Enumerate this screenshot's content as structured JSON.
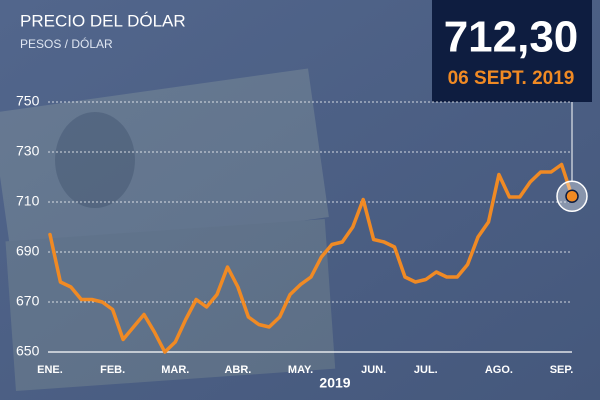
{
  "chart_data": {
    "type": "line",
    "title": "PRECIO DEL DÓLAR",
    "subtitle": "PESOS / DÓLAR",
    "x_label": "2019",
    "callout": {
      "value_label": "712,30",
      "date": "06 SEPT. 2019"
    },
    "categories": [
      "ENE.",
      null,
      null,
      null,
      null,
      null,
      "FEB.",
      null,
      null,
      null,
      null,
      null,
      "MAR.",
      null,
      null,
      null,
      null,
      null,
      "ABR.",
      null,
      null,
      null,
      null,
      null,
      "MAY.",
      null,
      null,
      null,
      null,
      null,
      null,
      "JUN.",
      null,
      null,
      null,
      null,
      "JUL.",
      null,
      null,
      null,
      null,
      null,
      null,
      "AGO.",
      null,
      null,
      null,
      null,
      null,
      "SEP.",
      null
    ],
    "values": [
      697,
      678,
      676,
      671,
      671,
      670,
      667,
      655,
      660,
      665,
      658,
      650,
      654,
      663,
      671,
      668,
      673,
      684,
      676,
      664,
      661,
      660,
      664,
      673,
      677,
      680,
      688,
      693,
      694,
      700,
      711,
      695,
      694,
      692,
      680,
      678,
      679,
      682,
      680,
      680,
      685,
      696,
      702,
      721,
      712,
      712,
      718,
      722,
      722,
      725,
      712.3
    ],
    "color": "#f08a24",
    "ylim": [
      650,
      750
    ],
    "yticks": [
      650,
      670,
      690,
      710,
      730,
      750
    ],
    "grid": true
  }
}
